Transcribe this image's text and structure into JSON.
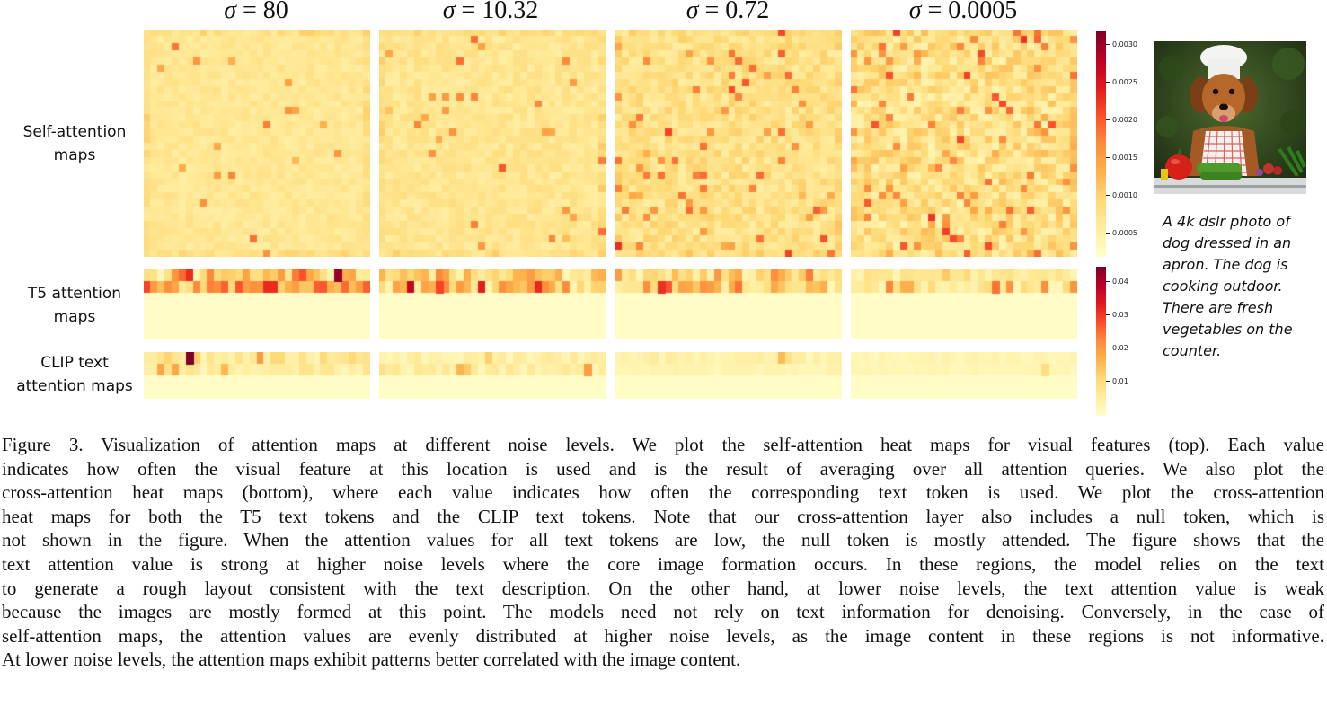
{
  "noise_levels": [
    {
      "label": "σ = 80",
      "sym": "σ",
      "val": "80"
    },
    {
      "label": "σ = 10.32",
      "sym": "σ",
      "val": "10.32"
    },
    {
      "label": "σ = 0.72",
      "sym": "σ",
      "val": "0.72"
    },
    {
      "label": "σ = 0.0005",
      "sym": "σ",
      "val": "0.0005"
    }
  ],
  "row_labels": {
    "self": [
      "Self-attention",
      "maps"
    ],
    "t5": [
      "T5 attention",
      "maps"
    ],
    "clip": [
      "CLIP text",
      "attention maps"
    ]
  },
  "colorbars": {
    "self": {
      "ticks": [
        "0.0030",
        "0.0025",
        "0.0020",
        "0.0015",
        "0.0010",
        "0.0005"
      ],
      "tick_values": [
        0.003,
        0.0025,
        0.002,
        0.0015,
        0.001,
        0.0005
      ],
      "range": [
        0.0002,
        0.0032
      ]
    },
    "text": {
      "ticks": [
        "0.04",
        "0.03",
        "0.02",
        "0.01"
      ],
      "tick_values": [
        0.04,
        0.03,
        0.02,
        0.01
      ],
      "range": [
        0.0,
        0.045
      ]
    }
  },
  "colormap": "YlOrRd",
  "image_caption": "A 4k dslr photo of\ndog dressed in an\napron. The dog is\ncooking outdoor.\nThere are fresh\nvegetables on the\ncounter.",
  "figure_caption_lines": [
    "Figure 3. Visualization of attention maps at different noise levels. We plot the self-attention heat maps for visual features (top). Each value",
    "indicates how often the visual feature at this location is used and is the result of averaging over all attention queries. We also plot the",
    "cross-attention heat maps (bottom), where each value indicates how often the corresponding text token is used. We plot the cross-attention",
    "heat maps for both the T5 text tokens and the CLIP text tokens. Note that our cross-attention layer also includes a null token, which is",
    "not shown in the figure. When the attention values for all text tokens are low, the null token is mostly attended. The figure shows that the",
    "text attention value is strong at higher noise levels where the core image formation occurs. In these regions, the model relies on the text",
    "to generate a rough layout consistent with the text description. On the other hand, at lower noise levels, the text attention value is weak",
    "because the images are mostly formed at this point. The models need not rely on text information for denoising. Conversely, in the case of",
    "self-attention maps, the attention values are evenly distributed at higher noise levels, as the image content in these regions is not informative.",
    "At lower noise levels, the attention maps exhibit patterns better correlated with the image content."
  ],
  "chart_data": {
    "type": "heatmap",
    "panels": [
      {
        "name": "Self-attention maps",
        "grid": [
          32,
          32
        ],
        "series_levels": {
          "σ = 80": {
            "mean": 0.0007,
            "spread": 0.0002
          },
          "σ = 10.32": {
            "mean": 0.0007,
            "spread": 0.0003
          },
          "σ = 0.72": {
            "mean": 0.0009,
            "spread": 0.0005
          },
          "σ = 0.0005": {
            "mean": 0.0009,
            "spread": 0.0008
          }
        }
      },
      {
        "name": "T5 attention maps",
        "grid": [
          6,
          32
        ],
        "peak_values": {
          "σ = 80": 0.045,
          "σ = 10.32": 0.03,
          "σ = 0.72": 0.032,
          "σ = 0.0005": 0.025
        }
      },
      {
        "name": "CLIP text attention maps",
        "grid": [
          4,
          32
        ],
        "peak_values": {
          "σ = 80": 0.045,
          "σ = 10.32": 0.024,
          "σ = 0.72": 0.008,
          "σ = 0.0005": 0.012
        }
      }
    ]
  }
}
